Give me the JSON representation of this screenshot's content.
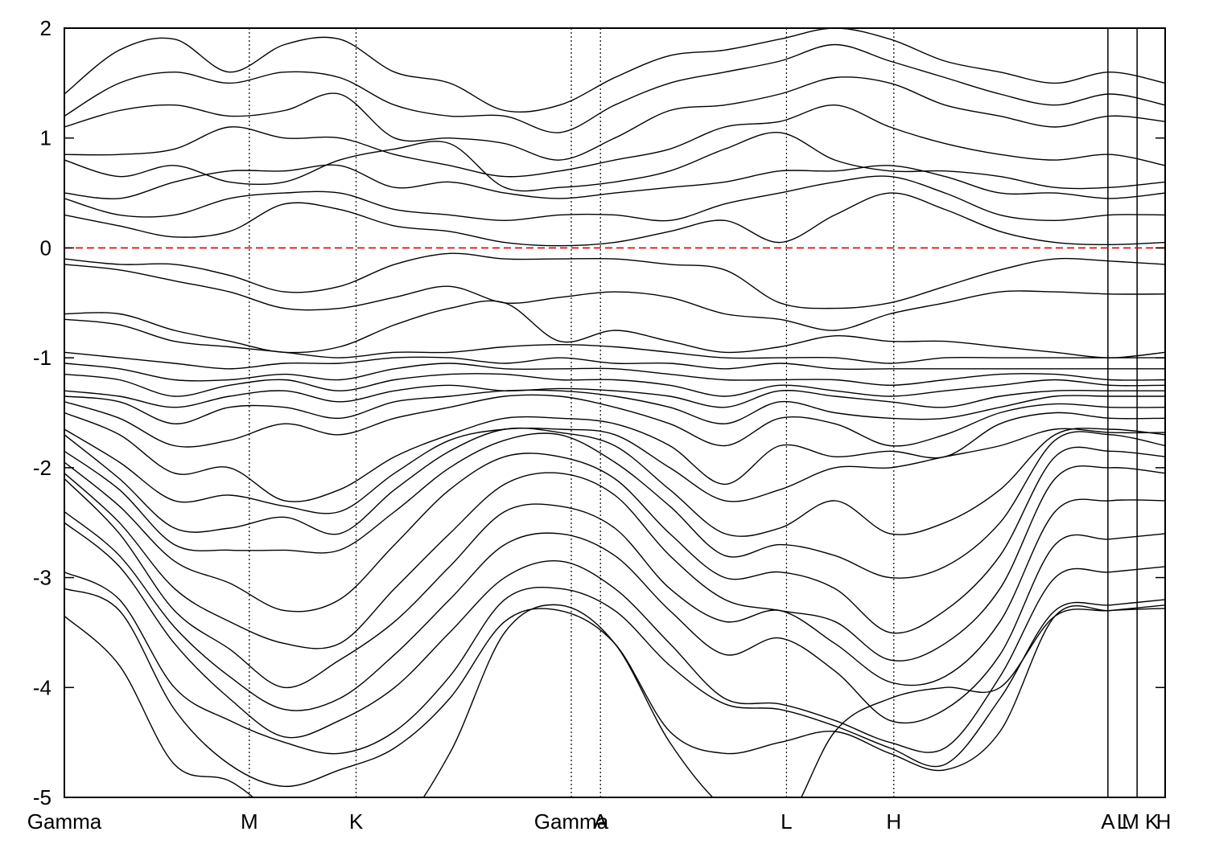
{
  "chart_data": {
    "type": "line",
    "ylim": [
      -5,
      2
    ],
    "xlim": [
      0,
      1
    ],
    "y_ticks": [
      -5,
      -4,
      -3,
      -2,
      -1,
      0,
      1,
      2
    ],
    "grid": false,
    "legend": "none",
    "fermi_level": 0,
    "fermi_color": "#dd0000",
    "band_color": "#000000",
    "k_points": [
      {
        "label": "Gamma",
        "x": 0.0,
        "style": "none"
      },
      {
        "label": "M",
        "x": 0.168,
        "style": "dotted"
      },
      {
        "label": "K",
        "x": 0.265,
        "style": "dotted"
      },
      {
        "label": "Gamma",
        "x": 0.4605,
        "style": "dotted"
      },
      {
        "label": "A",
        "x": 0.487,
        "style": "dotted"
      },
      {
        "label": "L",
        "x": 0.656,
        "style": "dotted"
      },
      {
        "label": "H",
        "x": 0.7535,
        "style": "dotted"
      },
      {
        "label": "A",
        "x": 0.948,
        "style": "solid"
      },
      {
        "label": "L",
        "x": 0.9745,
        "style": "solid"
      },
      {
        "label": "M",
        "x": 0.9745,
        "style": "none"
      },
      {
        "label": "K",
        "x": 0.991,
        "style": "none"
      },
      {
        "label": "H",
        "x": 1.0,
        "style": "none"
      }
    ],
    "bands": [
      [
        -3.35,
        -3.8,
        -4.7,
        -4.85,
        -5.2,
        -5.3,
        -5.3,
        -4.6,
        -3.5,
        -3.25,
        -3.6,
        -4.5,
        -5.1,
        -5.3,
        -4.4,
        -4.1,
        -4.0,
        -4.0,
        -3.35,
        -3.3,
        -3.25
      ],
      [
        -3.1,
        -3.3,
        -4.2,
        -4.7,
        -4.9,
        -4.75,
        -4.55,
        -4.1,
        -3.4,
        -3.3,
        -3.6,
        -4.4,
        -4.6,
        -4.5,
        -4.4,
        -4.6,
        -4.75,
        -4.4,
        -3.35,
        -3.3,
        -3.28
      ],
      [
        -2.95,
        -3.2,
        -4.0,
        -4.3,
        -4.5,
        -4.6,
        -4.4,
        -3.9,
        -3.2,
        -3.1,
        -3.3,
        -3.8,
        -4.15,
        -4.2,
        -4.35,
        -4.55,
        -4.7,
        -4.1,
        -3.3,
        -3.25,
        -3.2
      ],
      [
        -2.5,
        -2.9,
        -3.6,
        -4.1,
        -4.45,
        -4.3,
        -4.0,
        -3.5,
        -3.0,
        -2.85,
        -3.1,
        -3.6,
        -4.1,
        -4.15,
        -4.3,
        -4.5,
        -4.55,
        -3.9,
        -3.0,
        -2.95,
        -2.9
      ],
      [
        -2.4,
        -2.8,
        -3.45,
        -3.9,
        -4.2,
        -4.1,
        -3.7,
        -3.2,
        -2.7,
        -2.6,
        -2.8,
        -3.3,
        -3.7,
        -3.55,
        -3.85,
        -4.3,
        -4.2,
        -3.7,
        -2.7,
        -2.65,
        -2.6
      ],
      [
        -2.1,
        -2.6,
        -3.3,
        -3.65,
        -4.0,
        -3.75,
        -3.4,
        -2.9,
        -2.4,
        -2.35,
        -2.55,
        -3.1,
        -3.4,
        -3.3,
        -3.6,
        -3.95,
        -3.9,
        -3.4,
        -2.4,
        -2.3,
        -2.3
      ],
      [
        -2.05,
        -2.5,
        -3.1,
        -3.4,
        -3.6,
        -3.6,
        -3.1,
        -2.6,
        -2.15,
        -2.05,
        -2.25,
        -2.8,
        -3.2,
        -3.3,
        -3.4,
        -3.75,
        -3.6,
        -3.1,
        -2.1,
        -2.0,
        -2.05
      ],
      [
        -1.95,
        -2.35,
        -2.85,
        -3.05,
        -3.3,
        -3.2,
        -2.7,
        -2.2,
        -1.9,
        -1.9,
        -2.1,
        -2.6,
        -3.0,
        -2.95,
        -3.1,
        -3.5,
        -3.3,
        -2.8,
        -1.9,
        -1.85,
        -1.9
      ],
      [
        -1.85,
        -2.2,
        -2.7,
        -2.75,
        -2.75,
        -2.75,
        -2.4,
        -2.0,
        -1.75,
        -1.7,
        -1.95,
        -2.35,
        -2.8,
        -2.7,
        -2.8,
        -3.0,
        -2.9,
        -2.5,
        -1.75,
        -1.7,
        -1.8
      ],
      [
        -1.7,
        -2.1,
        -2.55,
        -2.55,
        -2.45,
        -2.6,
        -2.2,
        -1.85,
        -1.65,
        -1.68,
        -1.8,
        -2.2,
        -2.6,
        -2.55,
        -2.3,
        -2.6,
        -2.5,
        -2.2,
        -1.7,
        -1.65,
        -1.7
      ],
      [
        -1.65,
        -1.95,
        -2.3,
        -2.25,
        -2.35,
        -2.4,
        -2.05,
        -1.75,
        -1.65,
        -1.65,
        -1.7,
        -2.0,
        -2.3,
        -2.2,
        -2.0,
        -2.0,
        -1.9,
        -1.8,
        -1.65,
        -1.68,
        -1.68
      ],
      [
        -1.5,
        -1.7,
        -2.05,
        -2.0,
        -2.3,
        -2.2,
        -1.9,
        -1.7,
        -1.55,
        -1.55,
        -1.6,
        -1.8,
        -2.15,
        -1.8,
        -1.9,
        -1.85,
        -1.9,
        -1.6,
        -1.5,
        -1.55,
        -1.55
      ],
      [
        -1.4,
        -1.55,
        -1.8,
        -1.75,
        -1.6,
        -1.7,
        -1.55,
        -1.45,
        -1.35,
        -1.35,
        -1.45,
        -1.6,
        -1.8,
        -1.55,
        -1.6,
        -1.8,
        -1.7,
        -1.5,
        -1.42,
        -1.45,
        -1.45
      ],
      [
        -1.35,
        -1.4,
        -1.6,
        -1.45,
        -1.45,
        -1.55,
        -1.4,
        -1.35,
        -1.3,
        -1.3,
        -1.35,
        -1.45,
        -1.6,
        -1.4,
        -1.5,
        -1.55,
        -1.55,
        -1.45,
        -1.35,
        -1.35,
        -1.35
      ],
      [
        -1.3,
        -1.35,
        -1.45,
        -1.35,
        -1.3,
        -1.4,
        -1.3,
        -1.25,
        -1.3,
        -1.28,
        -1.3,
        -1.35,
        -1.45,
        -1.3,
        -1.35,
        -1.4,
        -1.45,
        -1.35,
        -1.3,
        -1.3,
        -1.3
      ],
      [
        -1.15,
        -1.2,
        -1.35,
        -1.25,
        -1.2,
        -1.3,
        -1.2,
        -1.15,
        -1.15,
        -1.2,
        -1.2,
        -1.25,
        -1.35,
        -1.25,
        -1.3,
        -1.35,
        -1.3,
        -1.25,
        -1.2,
        -1.25,
        -1.25
      ],
      [
        -1.05,
        -1.1,
        -1.2,
        -1.2,
        -1.15,
        -1.2,
        -1.1,
        -1.05,
        -1.1,
        -1.1,
        -1.1,
        -1.15,
        -1.2,
        -1.2,
        -1.2,
        -1.25,
        -1.2,
        -1.15,
        -1.15,
        -1.2,
        -1.2
      ],
      [
        -0.95,
        -1.0,
        -1.05,
        -1.1,
        -1.05,
        -1.05,
        -1.0,
        -1.0,
        -1.05,
        -1.0,
        -1.05,
        -1.05,
        -1.1,
        -1.05,
        -1.1,
        -1.1,
        -1.1,
        -1.1,
        -1.1,
        -1.1,
        -1.1
      ],
      [
        -0.65,
        -0.7,
        -0.85,
        -0.9,
        -0.95,
        -1.0,
        -0.95,
        -0.95,
        -0.9,
        -0.88,
        -0.9,
        -0.95,
        -1.0,
        -1.0,
        -1.0,
        -1.05,
        -1.0,
        -1.0,
        -1.0,
        -1.0,
        -1.0
      ],
      [
        -0.6,
        -0.6,
        -0.75,
        -0.85,
        -0.95,
        -0.9,
        -0.7,
        -0.55,
        -0.5,
        -0.85,
        -0.75,
        -0.85,
        -0.95,
        -0.9,
        -0.8,
        -0.85,
        -0.85,
        -0.9,
        -0.95,
        -1.0,
        -0.95
      ],
      [
        -0.15,
        -0.2,
        -0.3,
        -0.4,
        -0.55,
        -0.55,
        -0.45,
        -0.35,
        -0.5,
        -0.45,
        -0.4,
        -0.45,
        -0.6,
        -0.65,
        -0.75,
        -0.6,
        -0.5,
        -0.4,
        -0.4,
        -0.42,
        -0.42
      ],
      [
        -0.1,
        -0.15,
        -0.15,
        -0.25,
        -0.4,
        -0.35,
        -0.15,
        -0.05,
        -0.1,
        -0.1,
        -0.1,
        -0.15,
        -0.2,
        -0.5,
        -0.55,
        -0.5,
        -0.35,
        -0.2,
        -0.1,
        -0.12,
        -0.15
      ],
      [
        0.3,
        0.2,
        0.1,
        0.15,
        0.4,
        0.35,
        0.2,
        0.15,
        0.05,
        0.02,
        0.05,
        0.15,
        0.25,
        0.05,
        0.3,
        0.5,
        0.35,
        0.15,
        0.05,
        0.03,
        0.05
      ],
      [
        0.45,
        0.3,
        0.3,
        0.45,
        0.5,
        0.5,
        0.35,
        0.3,
        0.25,
        0.3,
        0.3,
        0.25,
        0.4,
        0.5,
        0.6,
        0.65,
        0.5,
        0.3,
        0.25,
        0.3,
        0.3
      ],
      [
        0.5,
        0.45,
        0.6,
        0.7,
        0.7,
        0.75,
        0.55,
        0.6,
        0.5,
        0.45,
        0.5,
        0.55,
        0.6,
        0.7,
        0.7,
        0.75,
        0.65,
        0.5,
        0.5,
        0.45,
        0.5
      ],
      [
        0.8,
        0.65,
        0.75,
        0.6,
        0.6,
        0.8,
        0.9,
        0.95,
        0.55,
        0.55,
        0.6,
        0.7,
        0.9,
        1.05,
        0.8,
        0.7,
        0.7,
        0.65,
        0.55,
        0.55,
        0.6
      ],
      [
        0.85,
        0.85,
        0.9,
        1.1,
        1.0,
        1.0,
        0.85,
        0.75,
        0.65,
        0.7,
        0.8,
        0.9,
        1.1,
        1.15,
        1.3,
        1.1,
        0.95,
        0.85,
        0.8,
        0.85,
        0.75
      ],
      [
        1.1,
        1.25,
        1.3,
        1.2,
        1.25,
        1.4,
        1.0,
        1.0,
        0.95,
        0.8,
        1.0,
        1.25,
        1.3,
        1.4,
        1.55,
        1.5,
        1.3,
        1.2,
        1.1,
        1.2,
        1.15
      ],
      [
        1.2,
        1.5,
        1.6,
        1.5,
        1.6,
        1.55,
        1.3,
        1.2,
        1.2,
        1.05,
        1.3,
        1.5,
        1.6,
        1.7,
        1.85,
        1.7,
        1.55,
        1.4,
        1.3,
        1.4,
        1.3
      ],
      [
        1.4,
        1.8,
        1.9,
        1.6,
        1.85,
        1.9,
        1.6,
        1.5,
        1.25,
        1.3,
        1.55,
        1.75,
        1.8,
        1.9,
        2.0,
        1.9,
        1.7,
        1.6,
        1.5,
        1.6,
        1.5
      ]
    ]
  }
}
